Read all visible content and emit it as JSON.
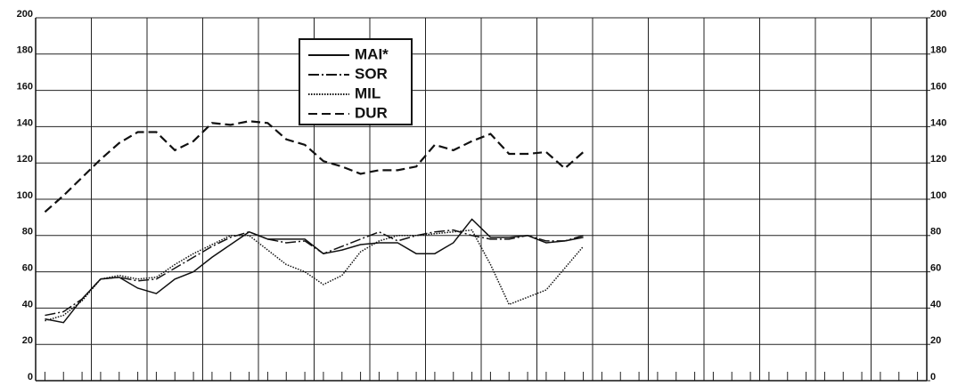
{
  "chart_data": {
    "type": "line",
    "categories": [
      null,
      null,
      null,
      null,
      null,
      null,
      null,
      null,
      null,
      null,
      null,
      null,
      null,
      null,
      null,
      null,
      null,
      null,
      null,
      null,
      null,
      null,
      null,
      null,
      null,
      null,
      null,
      null,
      null,
      null,
      null,
      null,
      null,
      null,
      null,
      null,
      null,
      null,
      null,
      null,
      null,
      null,
      null,
      null,
      null,
      null,
      null,
      null
    ],
    "series": [
      {
        "name": "MAI*",
        "color": "#111111",
        "dash": "none",
        "values": [
          34,
          32,
          45,
          56,
          57,
          51,
          48,
          56,
          60,
          68,
          75,
          82,
          78,
          78,
          78,
          70,
          72,
          75,
          76,
          76,
          70,
          70,
          76,
          89,
          79,
          79,
          80,
          76,
          77,
          79,
          null,
          null,
          null,
          null,
          null,
          null,
          null,
          null,
          null,
          null,
          null,
          null,
          null,
          null,
          null,
          null,
          null,
          null
        ]
      },
      {
        "name": "SOR",
        "color": "#111111",
        "dash": "12 3 2 3",
        "values": [
          36,
          38,
          45,
          56,
          57,
          55,
          56,
          62,
          68,
          74,
          79,
          82,
          78,
          76,
          77,
          70,
          74,
          78,
          82,
          77,
          80,
          82,
          83,
          80,
          78,
          78,
          80,
          77,
          77,
          80,
          null,
          null,
          null,
          null,
          null,
          null,
          null,
          null,
          null,
          null,
          null,
          null,
          null,
          null,
          null,
          null,
          null,
          null
        ]
      },
      {
        "name": "MIL",
        "color": "#111111",
        "dash": "1.5 1.5",
        "values": [
          33,
          36,
          44,
          56,
          58,
          56,
          57,
          64,
          70,
          75,
          80,
          80,
          72,
          64,
          60,
          53,
          58,
          71,
          77,
          80,
          80,
          81,
          82,
          83,
          64,
          42,
          46,
          50,
          62,
          74,
          null,
          null,
          null,
          null,
          null,
          null,
          null,
          null,
          null,
          null,
          null,
          null,
          null,
          null,
          null,
          null,
          null,
          null
        ]
      },
      {
        "name": "DUR",
        "color": "#111111",
        "dash": "10 5",
        "values": [
          93,
          102,
          112,
          122,
          131,
          137,
          137,
          127,
          132,
          142,
          141,
          143,
          142,
          133,
          130,
          121,
          118,
          114,
          116,
          116,
          118,
          130,
          127,
          132,
          136,
          125,
          125,
          126,
          117,
          126,
          null,
          null,
          null,
          null,
          null,
          null,
          null,
          null,
          null,
          null,
          null,
          null,
          null,
          null,
          null,
          null,
          null,
          null
        ]
      }
    ],
    "ylim": [
      0,
      200
    ],
    "yticks": [
      0,
      20,
      40,
      60,
      80,
      100,
      120,
      140,
      160,
      180,
      200
    ],
    "y2lim": [
      0,
      200
    ],
    "y2ticks": [
      0,
      20,
      40,
      60,
      80,
      100,
      120,
      140,
      160,
      180,
      200
    ],
    "grid": true,
    "legend": "top"
  }
}
